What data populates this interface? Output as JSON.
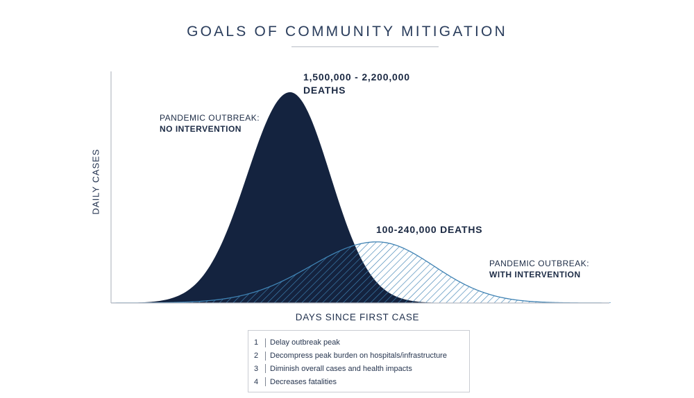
{
  "title": "GOALS OF COMMUNITY MITIGATION",
  "axes": {
    "ylabel": "DAILY CASES",
    "xlabel": "DAYS SINCE FIRST CASE"
  },
  "annotations": {
    "no_intervention": {
      "line1": "PANDEMIC OUTBREAK:",
      "line2": "NO INTERVENTION"
    },
    "with_intervention": {
      "line1": "PANDEMIC OUTBREAK:",
      "line2": "WITH INTERVENTION"
    },
    "high_deaths": {
      "line1": "1,500,000 - 2,200,000",
      "line2": "DEATHS"
    },
    "low_deaths": "100-240,000 DEATHS"
  },
  "legend": [
    {
      "num": "1",
      "text": "Delay outbreak peak"
    },
    {
      "num": "2",
      "text": "Decompress peak burden on hospitals/infrastructure"
    },
    {
      "num": "3",
      "text": "Diminish overall cases and health impacts"
    },
    {
      "num": "4",
      "text": "Decreases fatalities"
    }
  ],
  "colors": {
    "no_intervention_fill": "#14233f",
    "with_intervention_line": "#3f82b3",
    "axis": "#b6bbc3",
    "text": "#1c2b45"
  },
  "curves": {
    "no_intervention": {
      "shape": "bell",
      "relative_peak": 1.0,
      "peak_position": "early"
    },
    "with_intervention": {
      "shape": "bell",
      "relative_peak": 0.29,
      "peak_position": "later",
      "fill": "hatched"
    }
  }
}
